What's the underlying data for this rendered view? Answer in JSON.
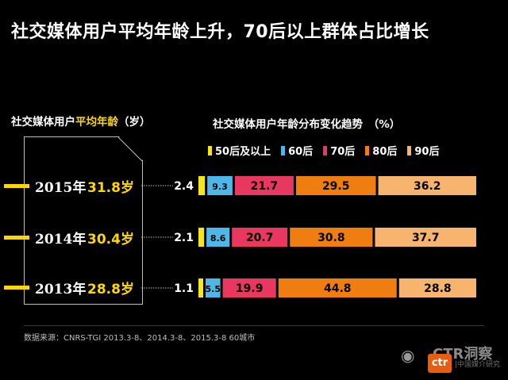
{
  "header": {
    "title": "社交媒体用户平均年龄上升，70后以上群体占比增长"
  },
  "left_panel": {
    "subtitle_prefix": "社交媒体用户",
    "subtitle_highlight": "平均年龄",
    "subtitle_suffix": "（岁）",
    "rows": [
      {
        "year": "2015年",
        "age": "31.8岁"
      },
      {
        "year": "2014年",
        "age": "30.4岁"
      },
      {
        "year": "2013年",
        "age": "28.8岁"
      }
    ]
  },
  "colors": {
    "accent": "#ffd700",
    "s50": "#f5e61a",
    "s60": "#4db8e8",
    "s70": "#e8385f",
    "s80": "#f07d0f",
    "s90": "#f6b46f"
  },
  "chart_data": {
    "type": "bar",
    "orientation": "horizontal",
    "stacked": true,
    "title": "社交媒体用户年龄分布变化趋势　（%）",
    "categories": [
      "2015",
      "2014",
      "2013"
    ],
    "series": [
      {
        "name": "50后及以上",
        "values": [
          2.4,
          2.1,
          1.1
        ],
        "labels": [
          "2.4",
          "2.1",
          "1.1"
        ]
      },
      {
        "name": "60后",
        "values": [
          9.3,
          8.6,
          5.5
        ],
        "labels": [
          "9.3",
          "8.6",
          "5.5"
        ]
      },
      {
        "name": "70后",
        "values": [
          21.7,
          20.7,
          19.9
        ],
        "labels": [
          "21.7",
          "20.7",
          "19.9"
        ]
      },
      {
        "name": "80后",
        "values": [
          29.5,
          30.8,
          44.8
        ],
        "labels": [
          "29.5",
          "30.8",
          "44.8"
        ]
      },
      {
        "name": "90后",
        "values": [
          36.2,
          37.7,
          28.8
        ],
        "labels": [
          "36.2",
          "37.7",
          "28.8"
        ]
      }
    ],
    "ylim": [
      0,
      100
    ]
  },
  "footer": {
    "source": "数据来源：CNRS-TGI 2013.3-8、2014.3-8、2015.3-8  60城市"
  },
  "logo": {
    "brand": "CTR洞察",
    "badge": "ctr",
    "sub": "|中国媒介研究"
  }
}
